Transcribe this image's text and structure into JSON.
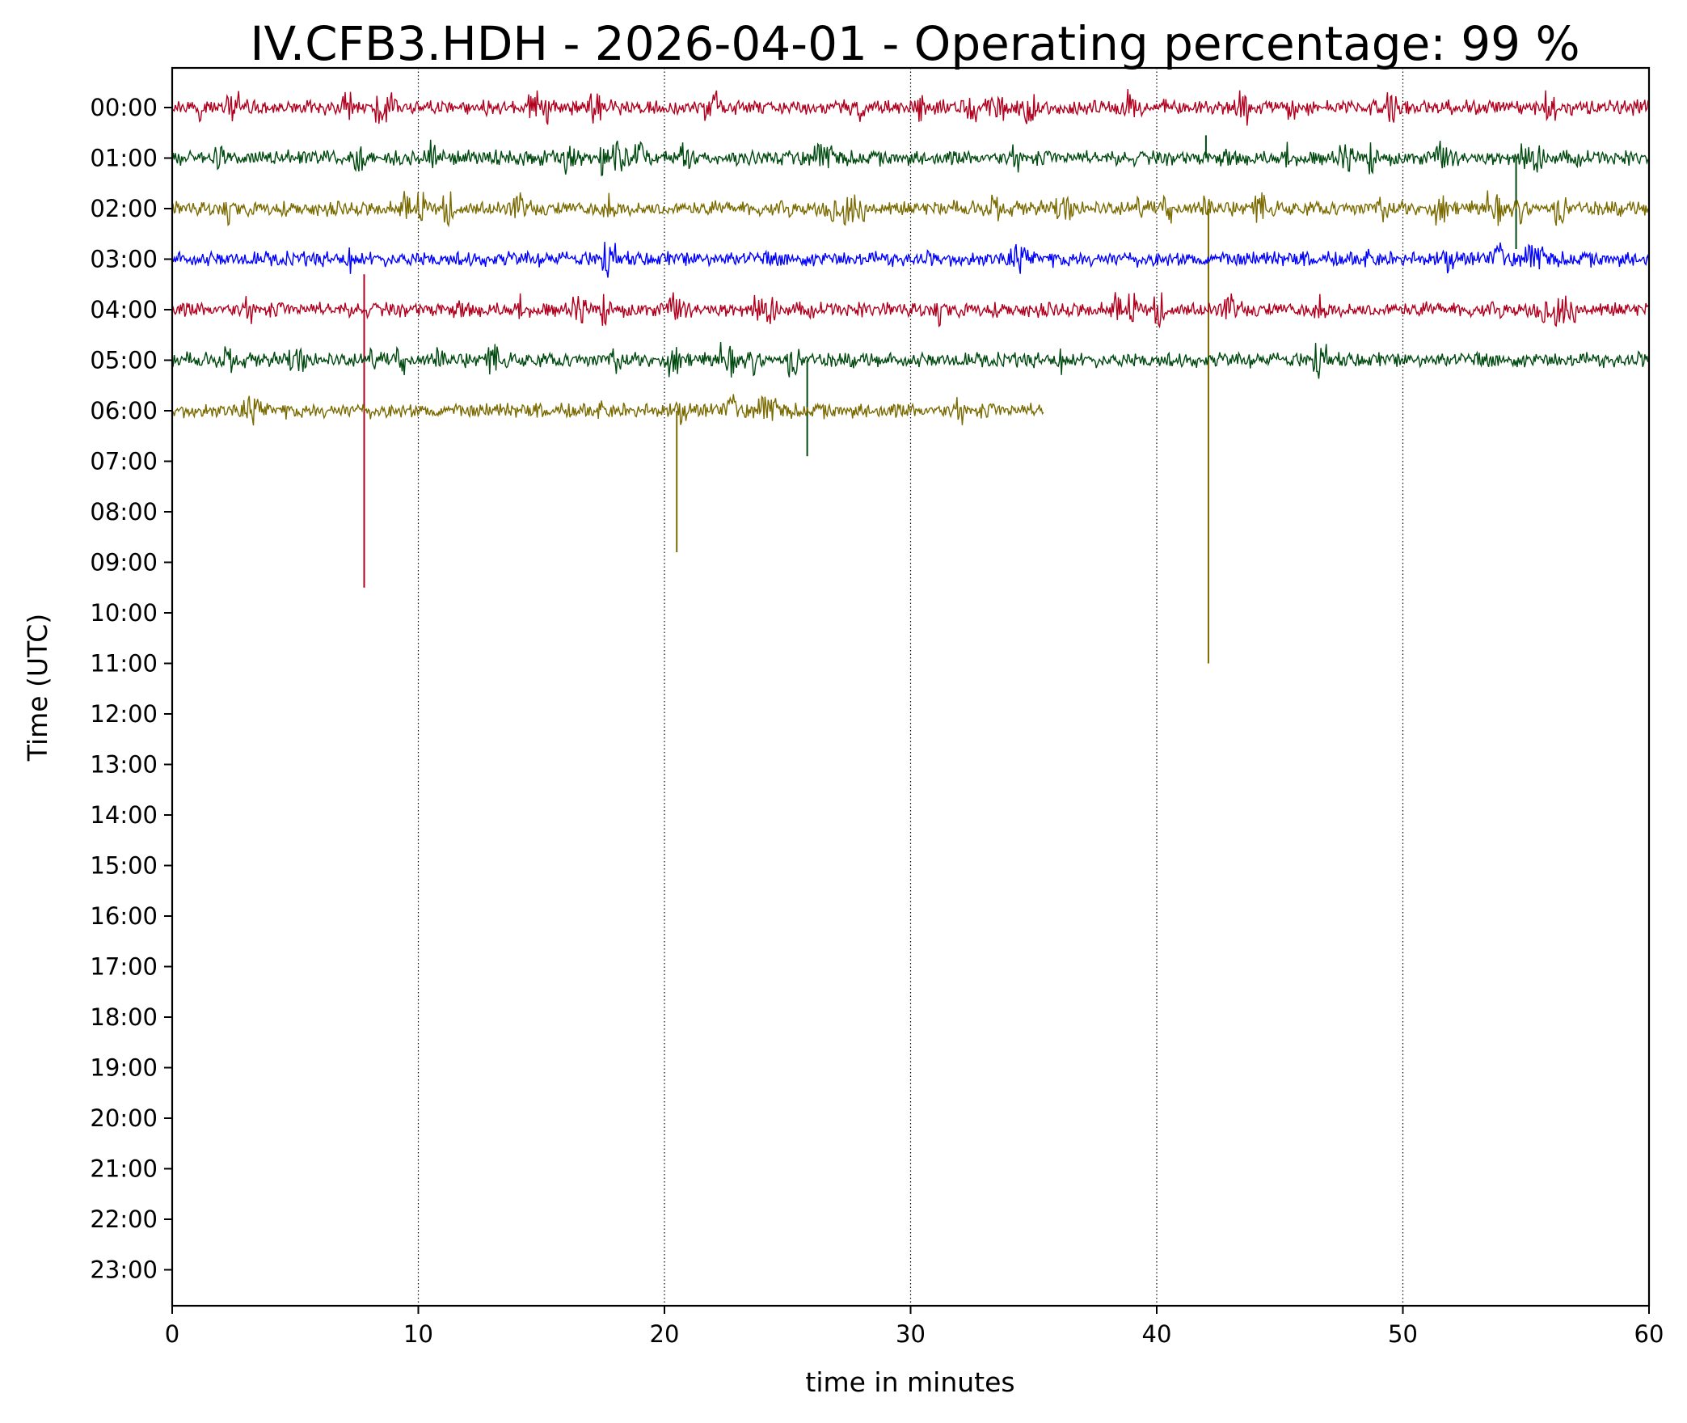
{
  "chart_data": {
    "type": "line",
    "title": "IV.CFB3.HDH - 2026-04-01 - Operating percentage: 99 %",
    "xlabel": "time in minutes",
    "ylabel": "Time (UTC)",
    "xlim": [
      0,
      60
    ],
    "x_ticks": [
      "0",
      "10",
      "20",
      "30",
      "40",
      "50",
      "60"
    ],
    "y_tick_labels": [
      "00:00",
      "01:00",
      "02:00",
      "03:00",
      "04:00",
      "05:00",
      "06:00",
      "07:00",
      "08:00",
      "09:00",
      "10:00",
      "11:00",
      "12:00",
      "13:00",
      "14:00",
      "15:00",
      "16:00",
      "17:00",
      "18:00",
      "19:00",
      "20:00",
      "21:00",
      "22:00",
      "23:00"
    ],
    "grid": "vertical dotted lines at x ticks",
    "colors": [
      "#b0001e",
      "#004a10",
      "#7a6a00",
      "#0000ff"
    ],
    "traces": [
      {
        "hour": "00:00",
        "color": "#b0001e",
        "start_min": 0,
        "end_min": 60,
        "spikes": []
      },
      {
        "hour": "01:00",
        "color": "#004a10",
        "start_min": 0,
        "end_min": 60,
        "spikes": [
          {
            "minute": 42.0,
            "offset_hours": -0.45
          },
          {
            "minute": 54.6,
            "offset_hours": 1.8
          }
        ]
      },
      {
        "hour": "02:00",
        "color": "#7a6a00",
        "start_min": 0,
        "end_min": 60,
        "spikes": [
          {
            "minute": 42.1,
            "offset_hours": 9.0
          }
        ]
      },
      {
        "hour": "03:00",
        "color": "#0000ff",
        "start_min": 0,
        "end_min": 60,
        "spikes": []
      },
      {
        "hour": "04:00",
        "color": "#b0001e",
        "start_min": 0,
        "end_min": 60,
        "spikes": [
          {
            "minute": 7.8,
            "offset_hours": 5.5
          },
          {
            "minute": 7.8,
            "offset_hours": -0.7
          }
        ]
      },
      {
        "hour": "05:00",
        "color": "#004a10",
        "start_min": 0,
        "end_min": 60,
        "spikes": [
          {
            "minute": 25.8,
            "offset_hours": 1.9
          }
        ]
      },
      {
        "hour": "06:00",
        "color": "#7a6a00",
        "start_min": 0,
        "end_min": 35.4,
        "spikes": [
          {
            "minute": 20.5,
            "offset_hours": 2.8
          }
        ]
      }
    ]
  }
}
